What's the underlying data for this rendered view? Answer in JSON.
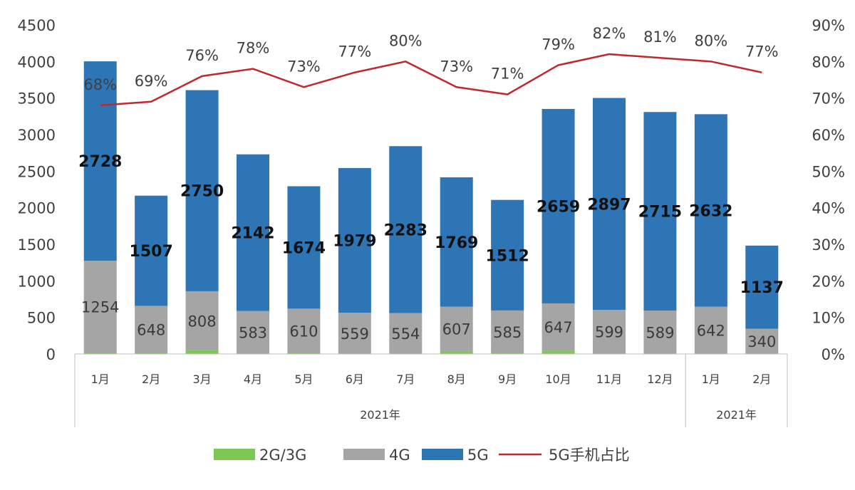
{
  "chart_data": {
    "type": "bar",
    "stacked": true,
    "categories": [
      "1月",
      "2月",
      "3月",
      "4月",
      "5月",
      "6月",
      "7月",
      "8月",
      "9月",
      "10月",
      "11月",
      "12月",
      "1月",
      "2月"
    ],
    "groups": [
      {
        "label": "2021年",
        "count": 12
      },
      {
        "label": "2021年",
        "count": 2
      }
    ],
    "series": [
      {
        "name": "2G/3G",
        "type": "bar",
        "axis": "left",
        "color": "#7DC855",
        "values": [
          20,
          10,
          50,
          5,
          10,
          5,
          5,
          40,
          10,
          45,
          5,
          5,
          5,
          5
        ]
      },
      {
        "name": "4G",
        "type": "bar",
        "axis": "left",
        "color": "#A5A5A5",
        "values": [
          1254,
          648,
          808,
          583,
          610,
          559,
          554,
          607,
          585,
          647,
          599,
          589,
          642,
          340
        ]
      },
      {
        "name": "5G",
        "type": "bar",
        "axis": "left",
        "color": "#2E75B6",
        "values": [
          2728,
          1507,
          2750,
          2142,
          1674,
          1979,
          2283,
          1769,
          1512,
          2659,
          2897,
          2715,
          2632,
          1137
        ]
      },
      {
        "name": "5G手机占比",
        "type": "line",
        "axis": "right",
        "color": "#C0282D",
        "values": [
          68,
          69,
          76,
          78,
          73,
          77,
          80,
          73,
          71,
          79,
          82,
          81,
          80,
          77
        ],
        "labels": [
          "68%",
          "69%",
          "76%",
          "78%",
          "73%",
          "77%",
          "80%",
          "73%",
          "71%",
          "79%",
          "82%",
          "81%",
          "80%",
          "77%"
        ]
      }
    ],
    "y_left": {
      "min": 0,
      "max": 4500,
      "ticks": [
        "0",
        "500",
        "1000",
        "1500",
        "2000",
        "2500",
        "3000",
        "3500",
        "4000",
        "4500"
      ]
    },
    "y_right": {
      "min": 0,
      "max": 90,
      "ticks": [
        "0%",
        "10%",
        "20%",
        "30%",
        "40%",
        "50%",
        "60%",
        "70%",
        "80%",
        "90%"
      ]
    },
    "grid": false,
    "legend_position": "bottom",
    "title": "",
    "xlabel": "",
    "ylabel": ""
  }
}
